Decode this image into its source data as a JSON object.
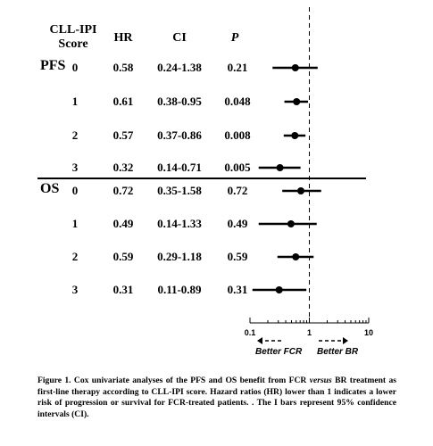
{
  "table": {
    "headers": {
      "score_line1": "CLL-IPI",
      "score_line2": "Score",
      "hr": "HR",
      "ci": "CI",
      "p": "P"
    },
    "groups": [
      {
        "label": "PFS",
        "rows": [
          {
            "score": "0",
            "hr": "0.58",
            "ci": "0.24-1.38",
            "p": "0.21"
          },
          {
            "score": "1",
            "hr": "0.61",
            "ci": "0.38-0.95",
            "p": "0.048"
          },
          {
            "score": "2",
            "hr": "0.57",
            "ci": "0.37-0.86",
            "p": "0.008"
          },
          {
            "score": "3",
            "hr": "0.32",
            "ci": "0.14-0.71",
            "p": "0.005"
          }
        ]
      },
      {
        "label": "OS",
        "rows": [
          {
            "score": "0",
            "hr": "0.72",
            "ci": "0.35-1.58",
            "p": "0.72"
          },
          {
            "score": "1",
            "hr": "0.49",
            "ci": "0.14-1.33",
            "p": "0.49"
          },
          {
            "score": "2",
            "hr": "0.59",
            "ci": "0.29-1.18",
            "p": "0.59"
          },
          {
            "score": "3",
            "hr": "0.31",
            "ci": "0.11-0.89",
            "p": "0.31"
          }
        ]
      }
    ]
  },
  "chart_data": {
    "type": "scatter",
    "x_scale": "log",
    "xlim": [
      0.1,
      10
    ],
    "x_ticks": [
      "0.1",
      "1",
      "10"
    ],
    "reference_line_x": 1,
    "direction_labels": {
      "left": "Better FCR",
      "right": "Better BR"
    },
    "series": [
      {
        "name": "PFS",
        "points": [
          {
            "score": "0",
            "hr": 0.58,
            "ci": [
              0.24,
              1.38
            ]
          },
          {
            "score": "1",
            "hr": 0.61,
            "ci": [
              0.38,
              0.95
            ]
          },
          {
            "score": "2",
            "hr": 0.57,
            "ci": [
              0.37,
              0.86
            ]
          },
          {
            "score": "3",
            "hr": 0.32,
            "ci": [
              0.14,
              0.71
            ]
          }
        ]
      },
      {
        "name": "OS",
        "points": [
          {
            "score": "0",
            "hr": 0.72,
            "ci": [
              0.35,
              1.58
            ]
          },
          {
            "score": "1",
            "hr": 0.49,
            "ci": [
              0.14,
              1.33
            ]
          },
          {
            "score": "2",
            "hr": 0.59,
            "ci": [
              0.29,
              1.18
            ]
          },
          {
            "score": "3",
            "hr": 0.31,
            "ci": [
              0.11,
              0.89
            ]
          }
        ]
      }
    ],
    "colors": {
      "marks": "#000000"
    }
  },
  "caption": {
    "lead": "Figure 1. Cox univariate analyses of the PFS and OS benefit from FCR ",
    "italic": "versus",
    "rest": " BR treatment as first-line therapy according to CLL-IPI score. Hazard ratios (HR) lower than 1 indicates a lower risk of progression or survival for FCR-treated patients. . The I bars represent 95% confidence intervals (CI)."
  }
}
